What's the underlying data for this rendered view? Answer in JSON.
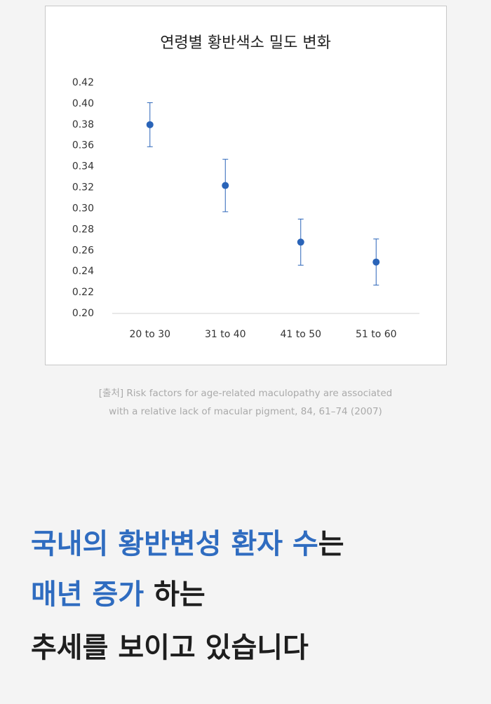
{
  "chart_data": {
    "type": "errorbar",
    "title": "연령별 황반색소 밀도 변화",
    "categories": [
      "20 to 30",
      "31 to 40",
      "41 to 50",
      "51 to 60"
    ],
    "values": [
      0.38,
      0.322,
      0.268,
      0.249
    ],
    "errors": [
      0.021,
      0.025,
      0.022,
      0.022
    ],
    "color": "#2a64b8",
    "ylim": [
      0.2,
      0.42
    ],
    "yticks": [
      {
        "value": 0.2,
        "label": "0.20"
      },
      {
        "value": 0.22,
        "label": "0.22"
      },
      {
        "value": 0.24,
        "label": "0.24"
      },
      {
        "value": 0.26,
        "label": "0.26"
      },
      {
        "value": 0.28,
        "label": "0.28"
      },
      {
        "value": 0.3,
        "label": "0.30"
      },
      {
        "value": 0.32,
        "label": "0.32"
      },
      {
        "value": 0.34,
        "label": "0.34"
      },
      {
        "value": 0.36,
        "label": "0.36"
      },
      {
        "value": 0.38,
        "label": "0.38"
      },
      {
        "value": 0.4,
        "label": "0.40"
      },
      {
        "value": 0.42,
        "label": "0.42"
      }
    ],
    "grid": false
  },
  "caption": [
    "[출처] Risk factors for age-related maculopathy are associated",
    "with a relative lack of macular pigment, 84, 61–74 (2007)"
  ],
  "headline": {
    "highlight_color": "#2f6cc0",
    "text_color": "#1e1e1e",
    "lines": [
      [
        {
          "text": "국내의 황반변성 환자 수",
          "highlight": true
        },
        {
          "text": "는",
          "highlight": false
        }
      ],
      [
        {
          "text": "매년 증가",
          "highlight": true
        },
        {
          "text": " 하는",
          "highlight": false
        }
      ],
      [
        {
          "text": "추세를 보이고 있습니다",
          "highlight": false
        }
      ]
    ]
  }
}
